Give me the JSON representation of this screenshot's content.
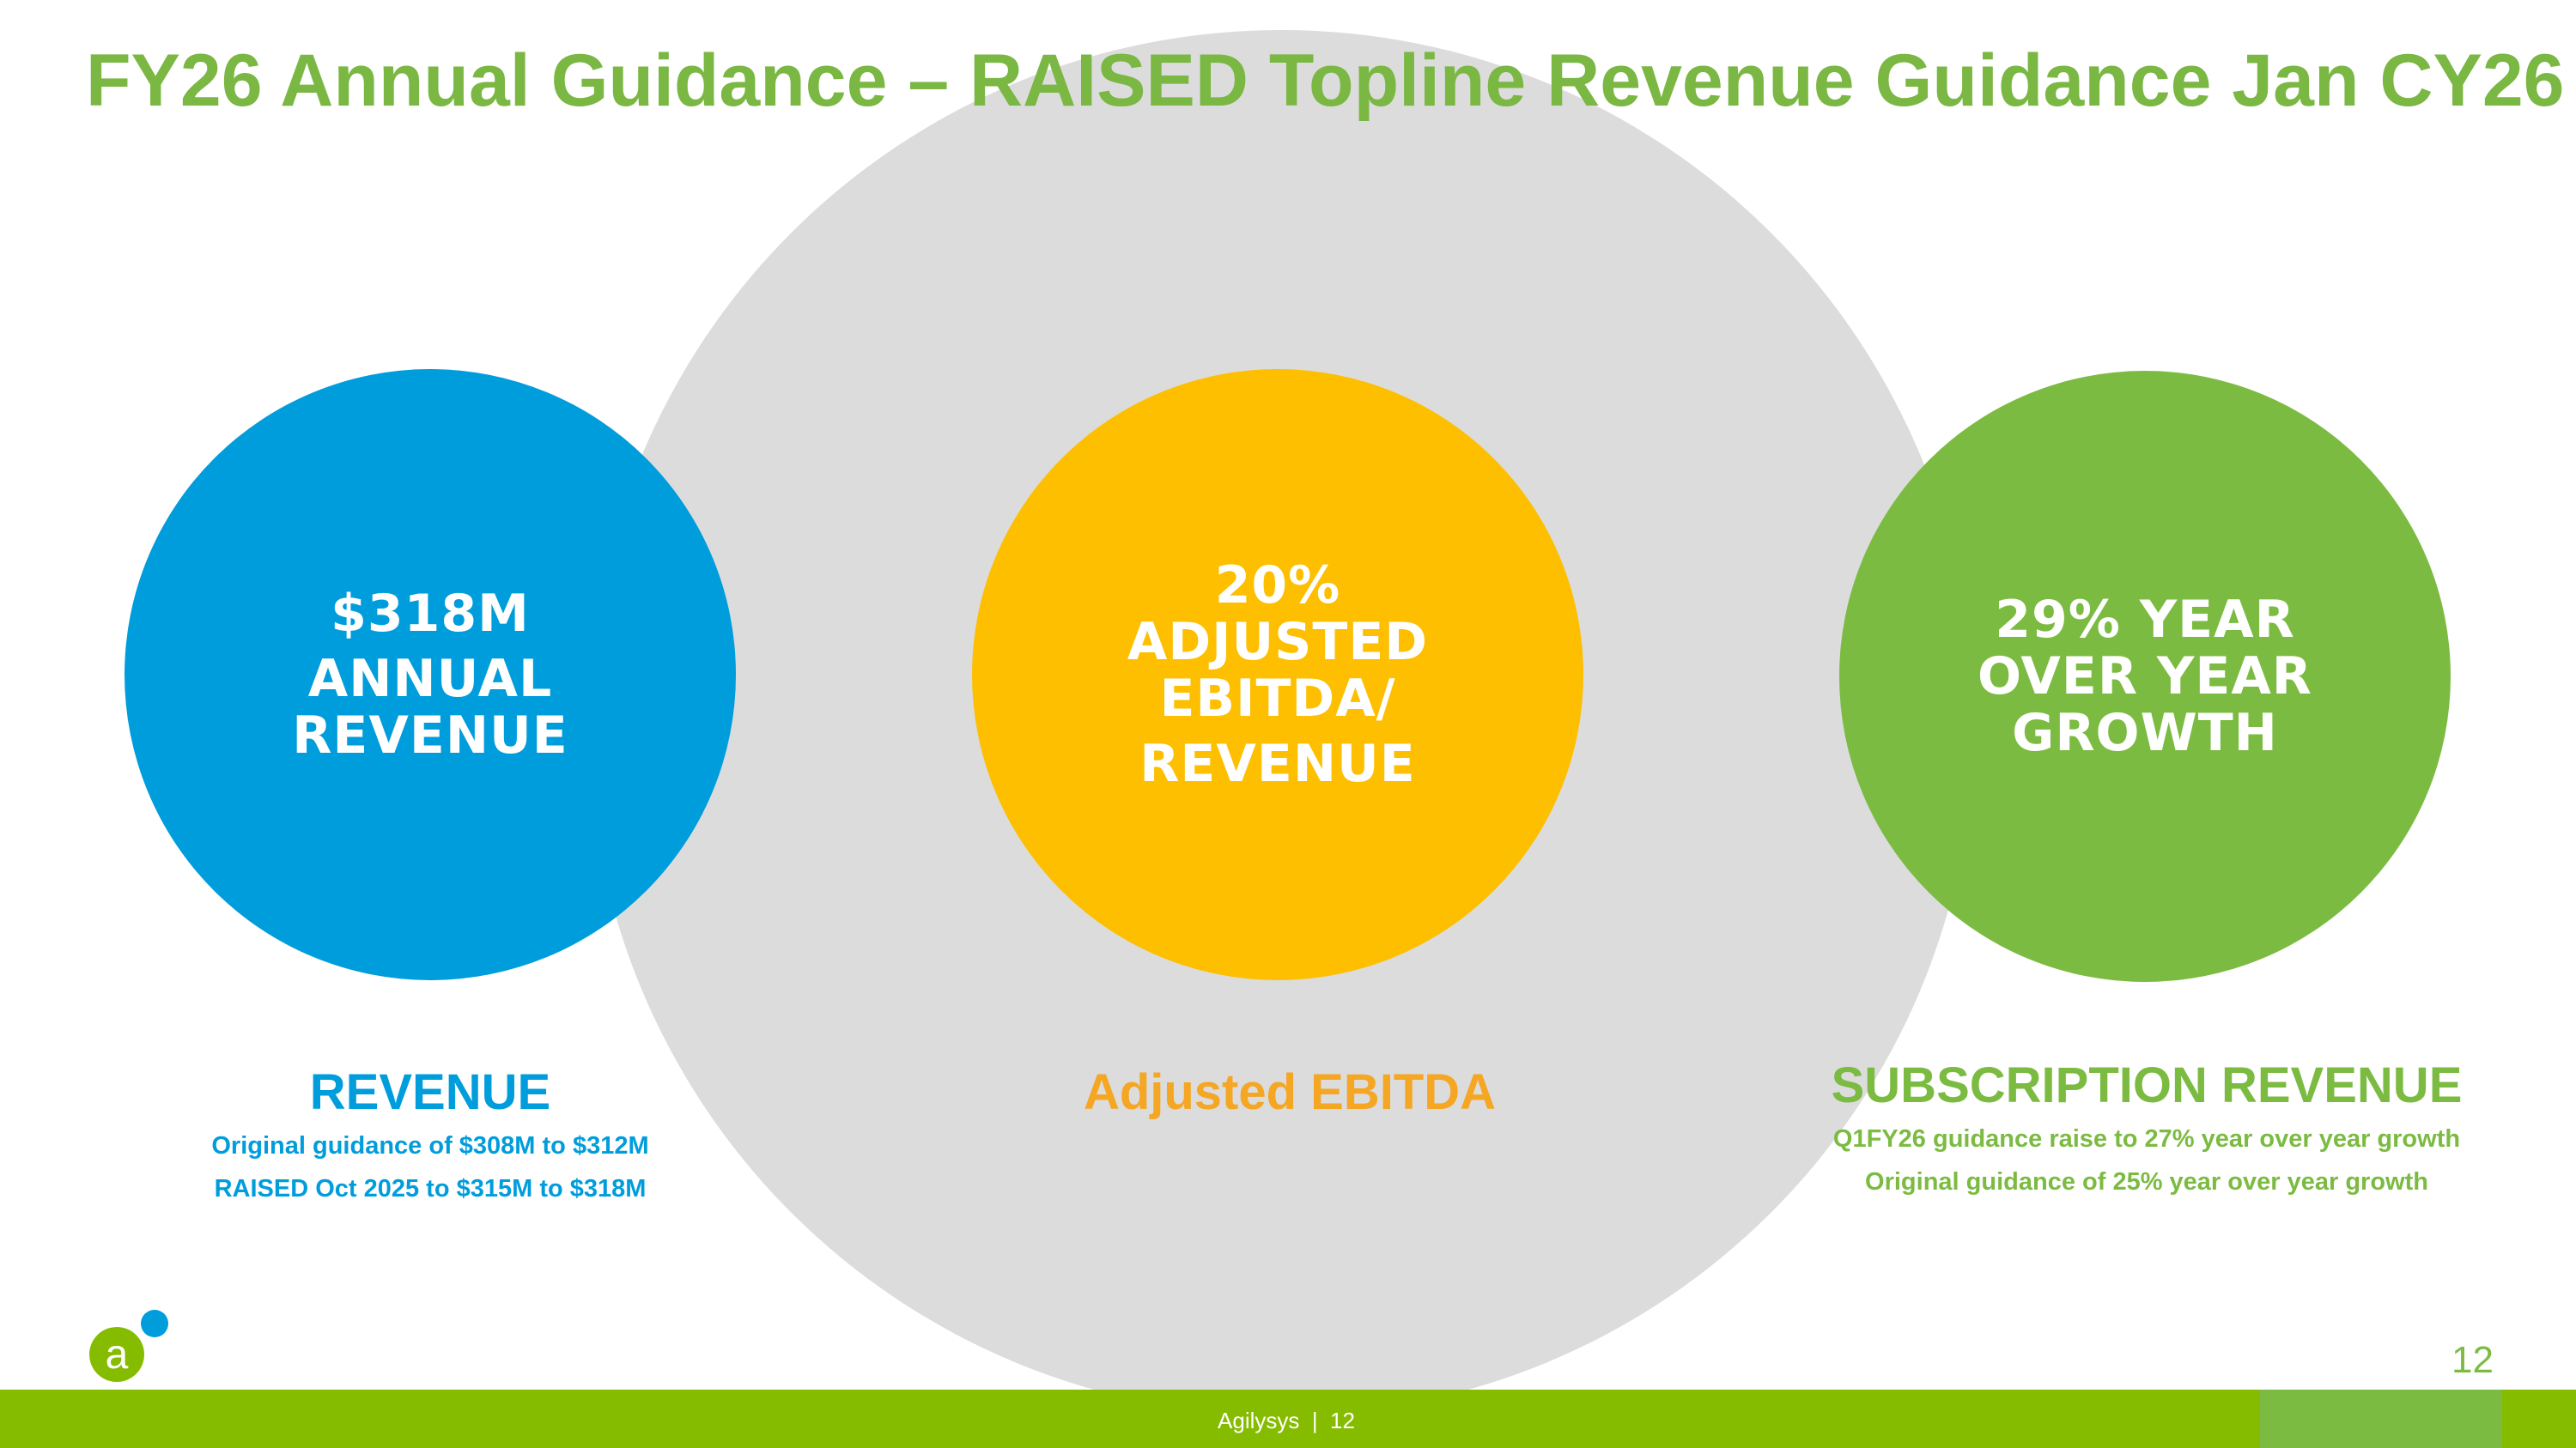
{
  "title": "FY26 Annual Guidance – RAISED Topline Revenue Guidance Jan CY26",
  "circles": {
    "revenue": {
      "line1": "$318M",
      "line2": "ANNUAL",
      "line3": "REVENUE"
    },
    "ebitda": {
      "line1": "20%",
      "line2": "ADJUSTED",
      "line3": "EBITDA/",
      "line4": "REVENUE"
    },
    "growth": {
      "line1": "29% YEAR",
      "line2": "OVER YEAR",
      "line3": "GROWTH"
    }
  },
  "sections": {
    "revenue": {
      "heading": "REVENUE",
      "notes": [
        "Original guidance of $308M to $312M",
        "RAISED Oct 2025 to $315M to $318M"
      ]
    },
    "ebitda": {
      "heading": "Adjusted EBITDA"
    },
    "subscription": {
      "heading": "SUBSCRIPTION REVENUE",
      "notes": [
        "Q1FY26 guidance raise to 27% year over year growth",
        "Original guidance of 25% year over year growth"
      ]
    }
  },
  "footer": {
    "text": "Agilysys  |  12",
    "page_number": "12"
  },
  "colors": {
    "green": "#7cbb42",
    "blue": "#009ddc",
    "yellow": "#fdbf00",
    "orange": "#f5a623",
    "bar": "#86bc00"
  }
}
